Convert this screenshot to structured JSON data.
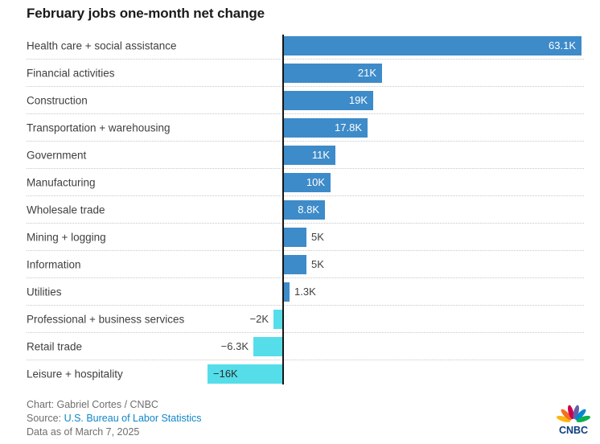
{
  "chart_data": {
    "type": "bar",
    "orientation": "horizontal",
    "title": "February jobs one-month net change",
    "categories": [
      "Health care + social assistance",
      "Financial activities",
      "Construction",
      "Transportation + warehousing",
      "Government",
      "Manufacturing",
      "Wholesale trade",
      "Mining + logging",
      "Information",
      "Utilities",
      "Professional + business services",
      "Retail trade",
      "Leisure + hospitality"
    ],
    "values": [
      63.1,
      21,
      19,
      17.8,
      11,
      10,
      8.8,
      5,
      5,
      1.3,
      -2,
      -6.3,
      -16
    ],
    "value_labels": [
      "63.1K",
      "21K",
      "19K",
      "17.8K",
      "11K",
      "10K",
      "8.8K",
      "5K",
      "5K",
      "1.3K",
      "−2K",
      "−6.3K",
      "−16K"
    ],
    "label_positions": [
      "inside-right",
      "inside-right",
      "inside-right",
      "inside-right",
      "inside-right",
      "inside-right",
      "inside-right",
      "outside-right",
      "outside-right",
      "outside-right",
      "outside-left",
      "outside-left",
      "inside-left"
    ],
    "xlim": [
      -16,
      63.1
    ],
    "unit_suffix": "K",
    "positive_color": "#3e8bc9",
    "negative_color": "#55dee9",
    "inside_label_color": "#ffffff",
    "outside_label_color": "#3f3f3f",
    "grid": "dotted-row-separators",
    "legend": "none"
  },
  "footer": {
    "credit": "Chart: Gabriel Cortes / CNBC",
    "source_prefix": "Source: ",
    "source_link": "U.S. Bureau of Labor Statistics",
    "data_note": "Data as of March 7, 2025"
  },
  "logo": {
    "wordmark": "CNBC",
    "wordmark_color": "#0b3c7e",
    "feather_colors": [
      "#fcb711",
      "#f37021",
      "#cc004c",
      "#6460aa",
      "#0089d0",
      "#0db14b"
    ]
  }
}
